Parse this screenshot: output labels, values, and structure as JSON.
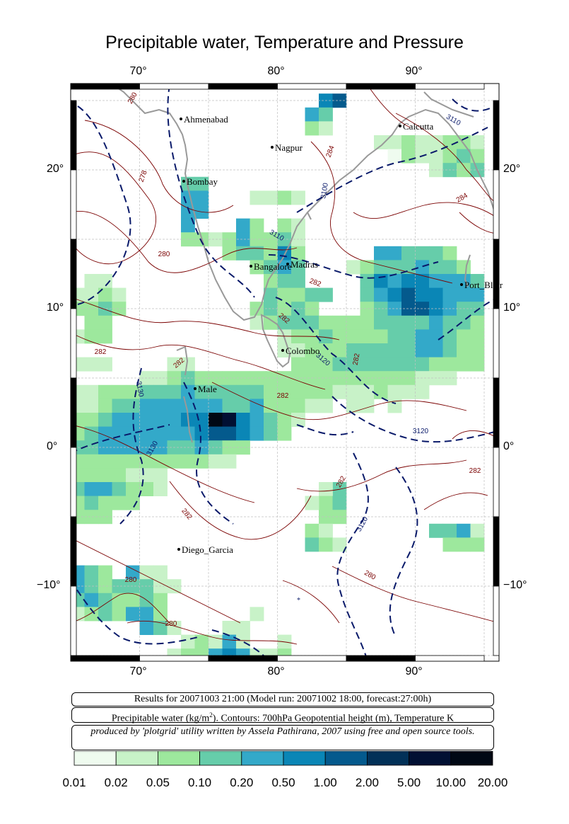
{
  "title": "Precipitable water, Temperature and Pressure",
  "axes": {
    "lon_ticks": [
      "70°",
      "80°",
      "90°"
    ],
    "lat_ticks": [
      "20°",
      "10°",
      "0°",
      "−10°"
    ]
  },
  "places": [
    {
      "name": "Ahmenabad"
    },
    {
      "name": "Nagpur"
    },
    {
      "name": "Calcutta"
    },
    {
      "name": "Bombay"
    },
    {
      "name": "Bangalore"
    },
    {
      "name": "Madras"
    },
    {
      "name": "Port_Blair"
    },
    {
      "name": "Colombo"
    },
    {
      "name": "Male"
    },
    {
      "name": "Diego_Garcia"
    }
  ],
  "contour_labels": {
    "temperature": [
      "280",
      "278",
      "280",
      "284",
      "284",
      "282",
      "282",
      "282",
      "282",
      "282",
      "282",
      "282",
      "282",
      "282",
      "280",
      "280",
      "280"
    ],
    "pressure": [
      "3110",
      "3100",
      "3110",
      "3120",
      "3130",
      "3130",
      "3120",
      "3120"
    ]
  },
  "info": {
    "line1": "Results for 20071003 21:00 (Model run: 20071002 18:00, forecast:27:00h)",
    "line2_prefix": "Precipitable water (kg/m",
    "line2_sup": "2",
    "line2_suffix": ").  Contours: 700hPa Geopotential height (m), Temperature K",
    "line3": "produced by 'plotgrid' utility written by Assela Pathirana, 2007 using free and open source tools."
  },
  "legend": {
    "labels": [
      "0.01",
      "0.02",
      "0.05",
      "0.10",
      "0.20",
      "0.50",
      "1.00",
      "2.00",
      "5.00",
      "10.00",
      "20.00"
    ],
    "colors": [
      "#effbef",
      "#c8f2c8",
      "#9de89d",
      "#66cdaa",
      "#33a9c9",
      "#0a86b6",
      "#045a8d",
      "#023158",
      "#011033",
      "#000814"
    ]
  },
  "colors": {
    "temperature_contour": "#7a0000",
    "pressure_contour": "#0a1a6a",
    "coastline": "#999999",
    "grid": "#c0c0c0"
  }
}
